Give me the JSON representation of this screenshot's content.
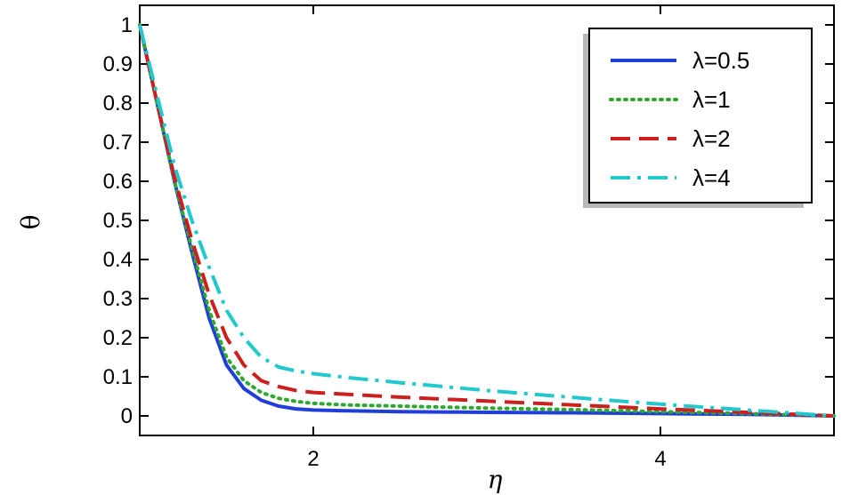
{
  "chart_data": {
    "type": "line",
    "xlabel": "η",
    "ylabel": "θ",
    "xlim": [
      1,
      5
    ],
    "ylim": [
      0,
      1
    ],
    "xticks": [
      2,
      4
    ],
    "yticks": [
      0,
      0.1,
      0.2,
      0.3,
      0.4,
      0.5,
      0.6,
      0.7,
      0.8,
      0.9,
      1
    ],
    "xtick_labels": [
      "2",
      "4"
    ],
    "ytick_labels": [
      "0",
      "0.1",
      "0.2",
      "0.3",
      "0.4",
      "0.5",
      "0.6",
      "0.7",
      "0.8",
      "0.9",
      "1"
    ],
    "grid": false,
    "legend_position": "top-right",
    "series": [
      {
        "name": "λ=0.5",
        "color": "#1f3fd8",
        "dash": "solid",
        "x": [
          1.0,
          1.1,
          1.2,
          1.3,
          1.4,
          1.5,
          1.6,
          1.7,
          1.8,
          1.9,
          2.0,
          2.2,
          2.5,
          3.0,
          3.5,
          4.0,
          4.5,
          5.0
        ],
        "y": [
          1.0,
          0.8,
          0.6,
          0.42,
          0.25,
          0.13,
          0.07,
          0.04,
          0.025,
          0.018,
          0.015,
          0.013,
          0.011,
          0.009,
          0.008,
          0.006,
          0.004,
          0.0
        ]
      },
      {
        "name": "λ=1",
        "color": "#2ea82e",
        "dash": "dotted",
        "x": [
          1.0,
          1.1,
          1.2,
          1.3,
          1.4,
          1.5,
          1.6,
          1.7,
          1.8,
          1.9,
          2.0,
          2.2,
          2.5,
          3.0,
          3.5,
          4.0,
          4.5,
          5.0
        ],
        "y": [
          1.0,
          0.8,
          0.6,
          0.43,
          0.27,
          0.15,
          0.09,
          0.06,
          0.045,
          0.037,
          0.032,
          0.028,
          0.025,
          0.02,
          0.016,
          0.011,
          0.006,
          0.0
        ]
      },
      {
        "name": "λ=2",
        "color": "#cc1f1f",
        "dash": "dashed",
        "x": [
          1.0,
          1.1,
          1.2,
          1.3,
          1.4,
          1.5,
          1.6,
          1.7,
          1.8,
          1.9,
          2.0,
          2.2,
          2.5,
          3.0,
          3.5,
          4.0,
          4.5,
          5.0
        ],
        "y": [
          1.0,
          0.8,
          0.61,
          0.45,
          0.31,
          0.2,
          0.13,
          0.09,
          0.075,
          0.065,
          0.06,
          0.055,
          0.048,
          0.038,
          0.028,
          0.018,
          0.009,
          0.0
        ]
      },
      {
        "name": "λ=4",
        "color": "#22c8cc",
        "dash": "dashdot",
        "x": [
          1.0,
          1.1,
          1.2,
          1.3,
          1.4,
          1.5,
          1.6,
          1.7,
          1.8,
          1.9,
          2.0,
          2.2,
          2.5,
          3.0,
          3.5,
          4.0,
          4.5,
          5.0
        ],
        "y": [
          1.0,
          0.82,
          0.64,
          0.5,
          0.38,
          0.27,
          0.2,
          0.15,
          0.125,
          0.115,
          0.108,
          0.098,
          0.085,
          0.065,
          0.047,
          0.03,
          0.015,
          0.0
        ]
      }
    ]
  }
}
